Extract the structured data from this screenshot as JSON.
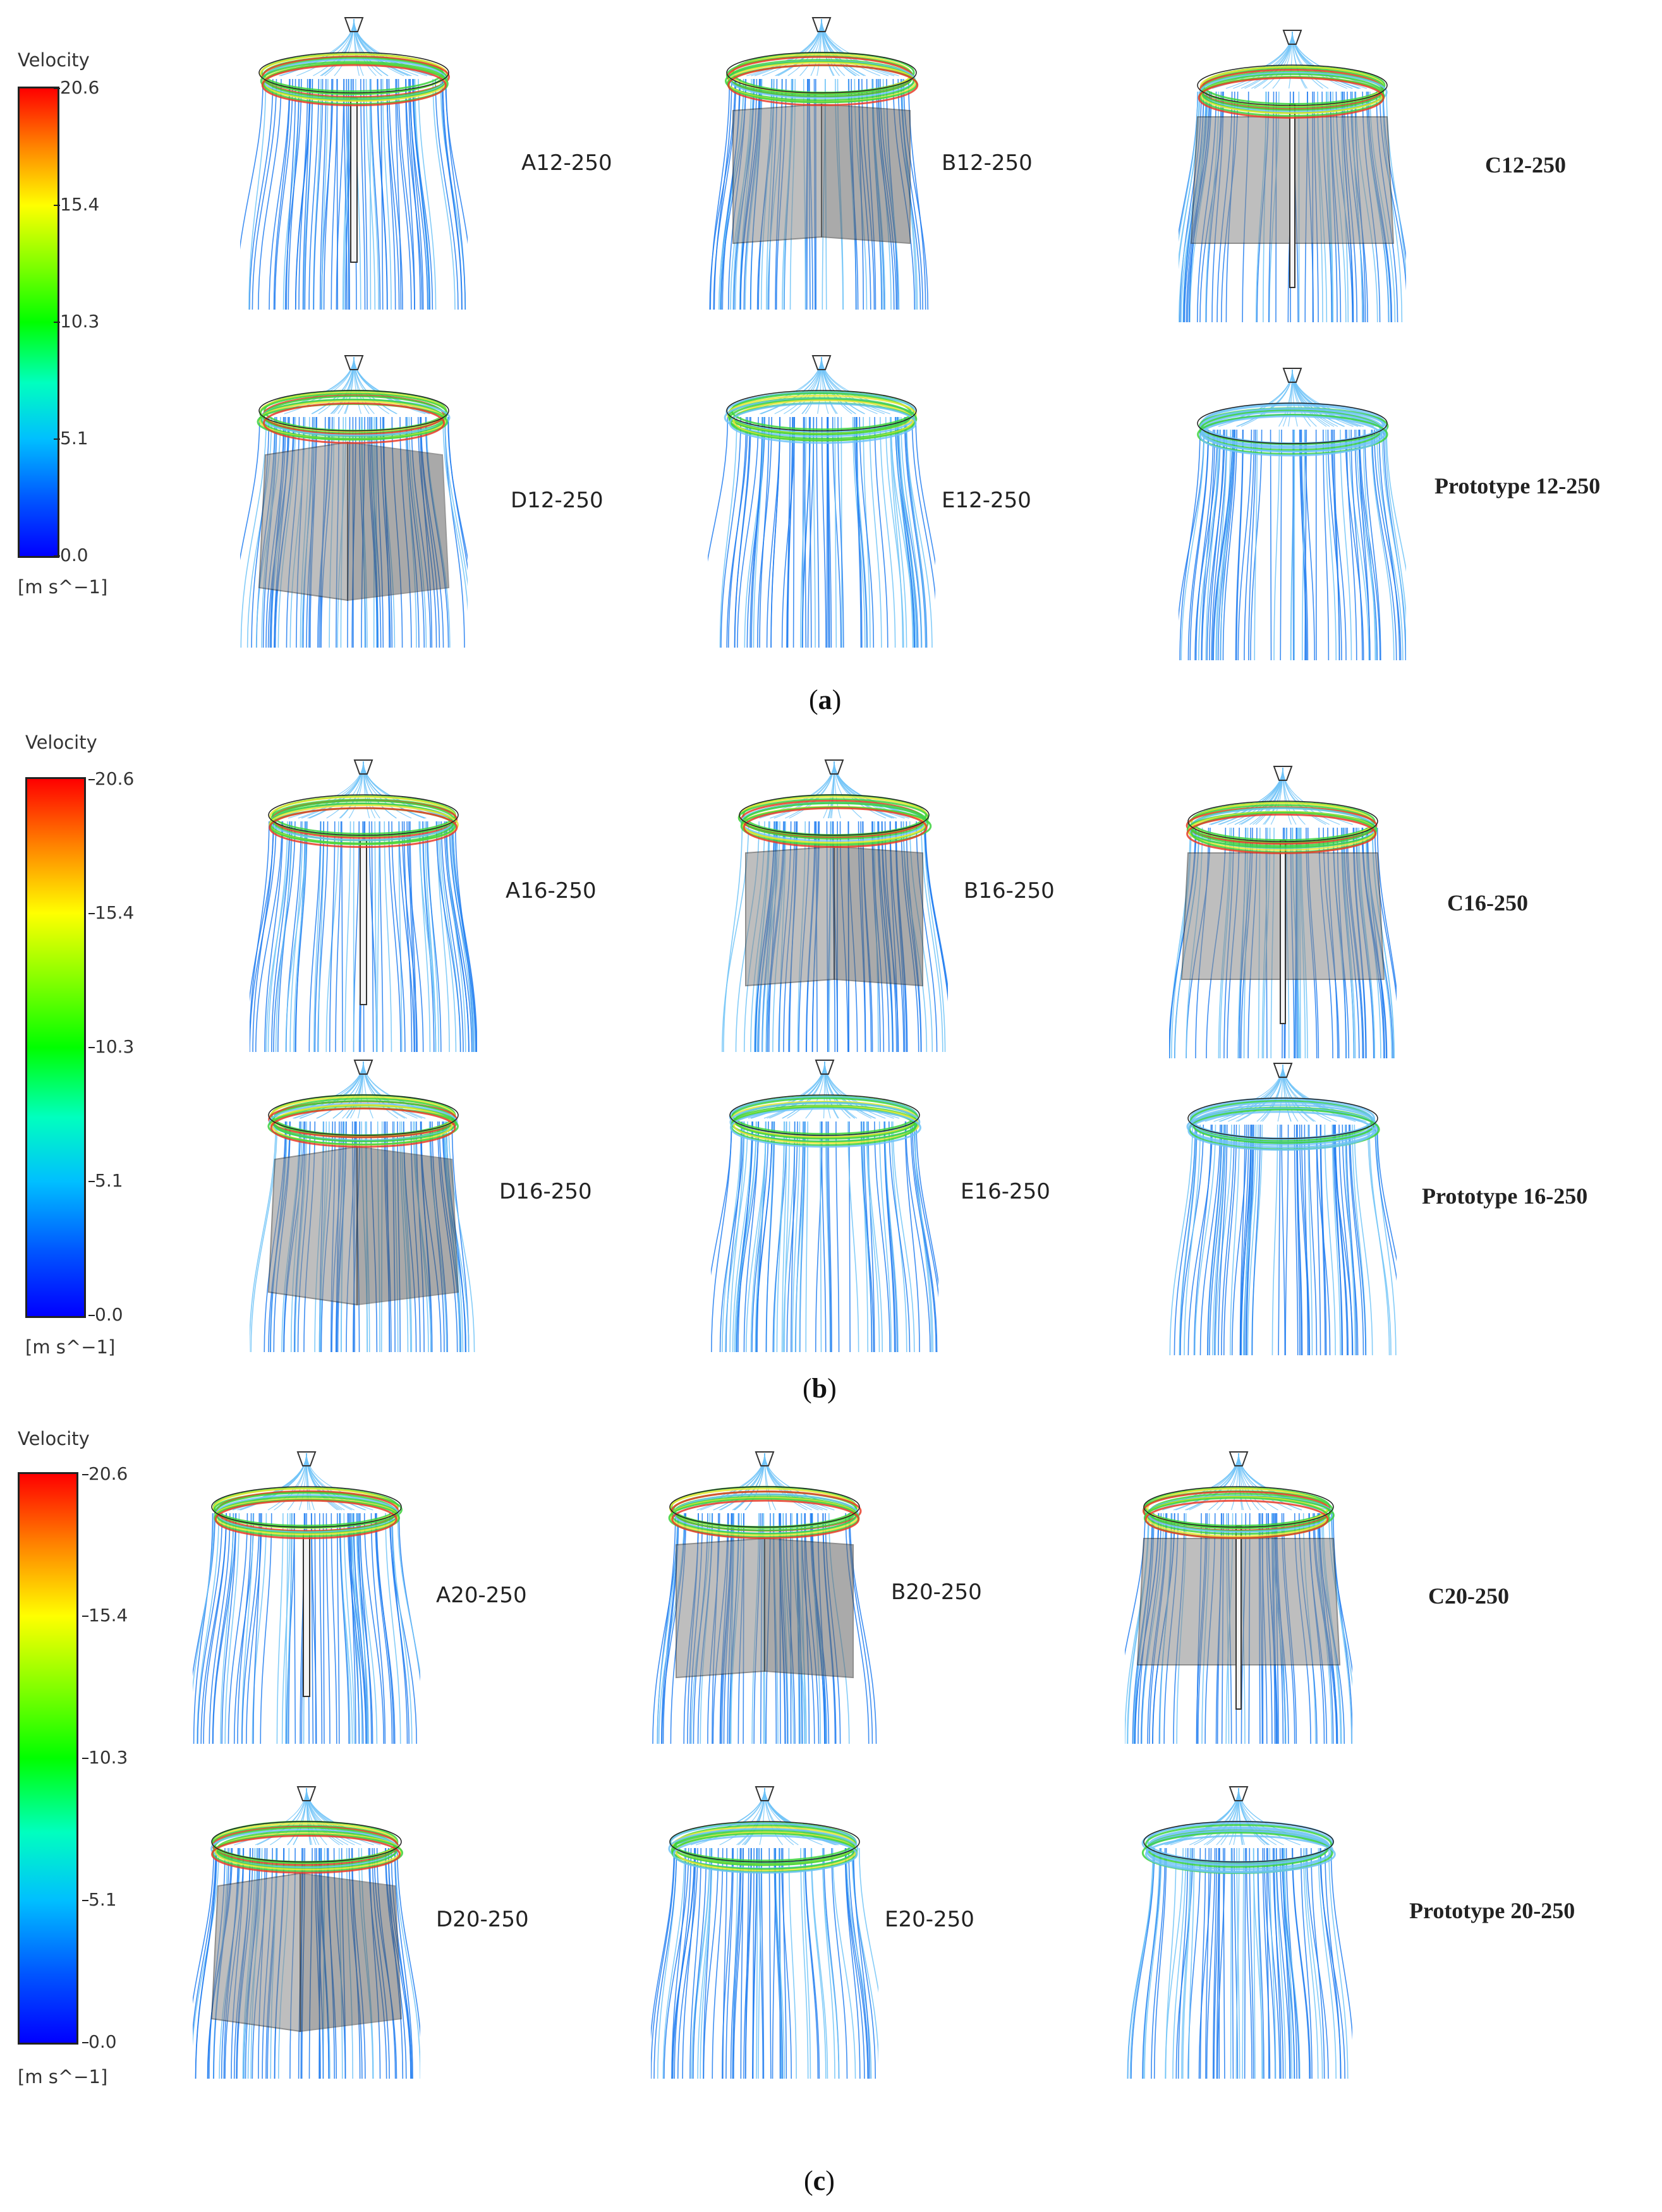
{
  "legend": {
    "title": "Velocity",
    "units": "[m s^−1]",
    "ticks": [
      "20.6",
      "15.4",
      "10.3",
      "5.1",
      "0.0"
    ]
  },
  "panels": [
    {
      "caption_letter": "a",
      "cases": [
        {
          "label": "A12-250",
          "geometry": "single-plate"
        },
        {
          "label": "B12-250",
          "geometry": "angled-plates"
        },
        {
          "label": "C12-250",
          "geometry": "wide-plate"
        },
        {
          "label": "D12-250",
          "geometry": "cross-plates"
        },
        {
          "label": "E12-250",
          "geometry": "none-swirl"
        },
        {
          "label": "Prototype 12-250",
          "geometry": "none"
        }
      ]
    },
    {
      "caption_letter": "b",
      "cases": [
        {
          "label": "A16-250",
          "geometry": "single-plate"
        },
        {
          "label": "B16-250",
          "geometry": "angled-plates"
        },
        {
          "label": "C16-250",
          "geometry": "wide-plate"
        },
        {
          "label": "D16-250",
          "geometry": "cross-plates"
        },
        {
          "label": "E16-250",
          "geometry": "none-swirl"
        },
        {
          "label": "Prototype 16-250",
          "geometry": "none"
        }
      ]
    },
    {
      "caption_letter": "c",
      "cases": [
        {
          "label": "A20-250",
          "geometry": "single-plate"
        },
        {
          "label": "B20-250",
          "geometry": "angled-plates"
        },
        {
          "label": "C20-250",
          "geometry": "wide-plate"
        },
        {
          "label": "D20-250",
          "geometry": "cross-plates"
        },
        {
          "label": "E20-250",
          "geometry": "none-swirl"
        },
        {
          "label": "Prototype 20-250",
          "geometry": "none"
        }
      ]
    }
  ],
  "colors": {
    "streamline_blue": "#1e7bf0",
    "streamline_light": "#6fc3f7",
    "ring_green": "#3cd23c",
    "ring_yellow": "#e6e632",
    "ring_red": "#e83c28",
    "plate_grey": "#8a8a8a"
  }
}
